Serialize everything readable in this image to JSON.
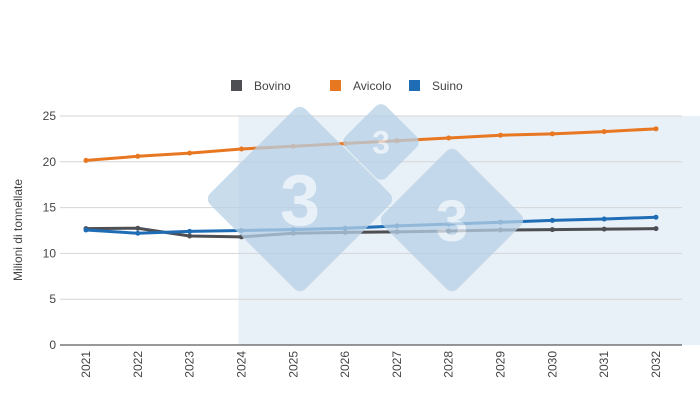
{
  "chart_data": {
    "type": "line",
    "title": "",
    "xlabel": "",
    "ylabel": "Milioni di tonnellate",
    "ylim": [
      0,
      25
    ],
    "yticks": [
      "0",
      "5",
      "10",
      "15",
      "20",
      "25"
    ],
    "grid": true,
    "legend_position": "top",
    "categories": [
      "2021",
      "2022",
      "2023",
      "2024",
      "2025",
      "2026",
      "2027",
      "2028",
      "2029",
      "2030",
      "2031",
      "2032"
    ],
    "highlighted_range": [
      "2024",
      "2032"
    ],
    "series": [
      {
        "name": "Bovino",
        "color": "#4d4f53",
        "values": [
          12.7,
          12.75,
          11.9,
          11.8,
          12.2,
          12.3,
          12.35,
          12.45,
          12.55,
          12.6,
          12.65,
          12.7
        ]
      },
      {
        "name": "Avicolo",
        "color": "#e87722",
        "values": [
          20.15,
          20.6,
          20.95,
          21.4,
          21.7,
          22.0,
          22.3,
          22.6,
          22.9,
          23.05,
          23.3,
          23.6
        ]
      },
      {
        "name": "Suino",
        "color": "#1f6db5",
        "values": [
          12.55,
          12.2,
          12.4,
          12.5,
          12.6,
          12.75,
          13.0,
          13.2,
          13.4,
          13.6,
          13.75,
          13.95
        ]
      }
    ]
  },
  "watermark": {
    "text": "3",
    "color": "#b7d1e6"
  },
  "shade_color": "#e8f0f8"
}
